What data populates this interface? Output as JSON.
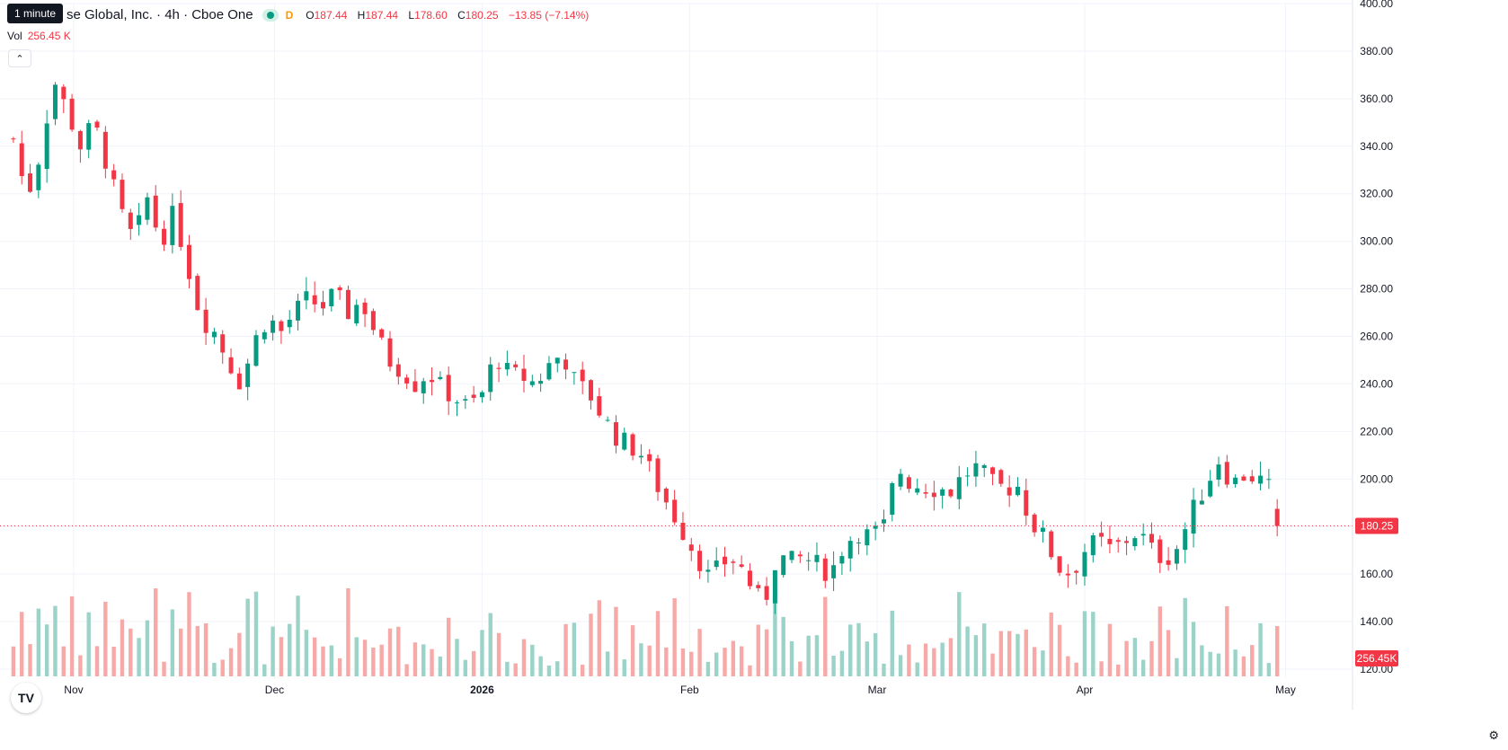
{
  "tooltip": "1 minute",
  "legend": {
    "symbol": "se Global, Inc. · 4h · Cboe One",
    "interval_badge": "D",
    "open_label": "O",
    "open": "187.44",
    "high_label": "H",
    "high": "187.44",
    "low_label": "L",
    "low": "178.60",
    "close_label": "C",
    "close": "180.25",
    "change": "−13.85 (−7.14%)"
  },
  "volume": {
    "label": "Vol",
    "value": "256.45 K"
  },
  "collapse_icon": "chevron-up-icon",
  "logo_text": "TV",
  "colors": {
    "up": "#089981",
    "down": "#f23645",
    "up_vol": "#9bd3c9",
    "down_vol": "#f7a9a7",
    "grid": "#f0f3fa",
    "axis_text": "#131722"
  },
  "chart_data": {
    "type": "candlestick",
    "y_ticks": [
      "400.00",
      "380.00",
      "360.00",
      "340.00",
      "320.00",
      "300.00",
      "280.00",
      "260.00",
      "240.00",
      "220.00",
      "200.00",
      "180.00",
      "160.00",
      "140.00",
      "120.00"
    ],
    "ylim": [
      120,
      400
    ],
    "x_ticks": [
      {
        "label": "Nov",
        "date": "2025-11-01"
      },
      {
        "label": "Dec",
        "date": "2025-12-01"
      },
      {
        "label": "2026",
        "date": "2026-01-01",
        "bold": true
      },
      {
        "label": "Feb",
        "date": "2026-02-01"
      },
      {
        "label": "Mar",
        "date": "2026-03-01"
      },
      {
        "label": "Apr",
        "date": "2026-04-01"
      },
      {
        "label": "May",
        "date": "2026-05-01"
      }
    ],
    "last_price": "180.25",
    "last_volume": "256.45K",
    "price_path": [
      [
        "2025-10-23",
        343
      ],
      [
        "2025-10-25",
        318
      ],
      [
        "2025-10-27",
        337
      ],
      [
        "2025-10-29",
        368
      ],
      [
        "2025-10-31",
        355
      ],
      [
        "2025-11-02",
        340
      ],
      [
        "2025-11-04",
        350
      ],
      [
        "2025-11-06",
        332
      ],
      [
        "2025-11-08",
        312
      ],
      [
        "2025-11-10",
        300
      ],
      [
        "2025-11-12",
        318
      ],
      [
        "2025-11-14",
        300
      ],
      [
        "2025-11-16",
        312
      ],
      [
        "2025-11-18",
        290
      ],
      [
        "2025-11-20",
        268
      ],
      [
        "2025-11-22",
        262
      ],
      [
        "2025-11-24",
        250
      ],
      [
        "2025-11-26",
        240
      ],
      [
        "2025-11-28",
        258
      ],
      [
        "2025-11-30",
        268
      ],
      [
        "2025-12-02",
        262
      ],
      [
        "2025-12-04",
        270
      ],
      [
        "2025-12-06",
        276
      ],
      [
        "2025-12-08",
        272
      ],
      [
        "2025-12-10",
        278
      ],
      [
        "2025-12-12",
        270
      ],
      [
        "2025-12-14",
        275
      ],
      [
        "2025-12-16",
        262
      ],
      [
        "2025-12-18",
        250
      ],
      [
        "2025-12-20",
        246
      ],
      [
        "2025-12-22",
        240
      ],
      [
        "2025-12-24",
        245
      ],
      [
        "2025-12-26",
        238
      ],
      [
        "2025-12-28",
        234
      ],
      [
        "2025-12-30",
        230
      ],
      [
        "2026-01-01",
        236
      ],
      [
        "2026-01-03",
        252
      ],
      [
        "2026-01-05",
        244
      ],
      [
        "2026-01-07",
        243
      ],
      [
        "2026-01-09",
        240
      ],
      [
        "2026-01-11",
        248
      ],
      [
        "2026-01-13",
        253
      ],
      [
        "2026-01-15",
        240
      ],
      [
        "2026-01-17",
        236
      ],
      [
        "2026-01-19",
        226
      ],
      [
        "2026-01-21",
        218
      ],
      [
        "2026-01-23",
        214
      ],
      [
        "2026-01-25",
        210
      ],
      [
        "2026-01-27",
        198
      ],
      [
        "2026-01-29",
        188
      ],
      [
        "2026-01-31",
        178
      ],
      [
        "2026-02-02",
        168
      ],
      [
        "2026-02-04",
        158
      ],
      [
        "2026-02-06",
        165
      ],
      [
        "2026-02-08",
        166
      ],
      [
        "2026-02-10",
        156
      ],
      [
        "2026-02-12",
        146
      ],
      [
        "2026-02-14",
        168
      ],
      [
        "2026-02-16",
        165
      ],
      [
        "2026-02-18",
        167
      ],
      [
        "2026-02-20",
        164
      ],
      [
        "2026-02-22",
        160
      ],
      [
        "2026-02-24",
        172
      ],
      [
        "2026-02-26",
        178
      ],
      [
        "2026-02-28",
        176
      ],
      [
        "2026-03-02",
        180
      ],
      [
        "2026-03-04",
        205
      ],
      [
        "2026-03-06",
        198
      ],
      [
        "2026-03-08",
        197
      ],
      [
        "2026-03-10",
        196
      ],
      [
        "2026-03-12",
        195
      ],
      [
        "2026-03-14",
        202
      ],
      [
        "2026-03-16",
        205
      ],
      [
        "2026-03-18",
        198
      ],
      [
        "2026-03-20",
        196
      ],
      [
        "2026-03-22",
        197
      ],
      [
        "2026-03-24",
        182
      ],
      [
        "2026-03-26",
        175
      ],
      [
        "2026-03-28",
        163
      ],
      [
        "2026-03-30",
        160
      ],
      [
        "2026-04-01",
        170
      ],
      [
        "2026-04-03",
        174
      ],
      [
        "2026-04-05",
        170
      ],
      [
        "2026-04-07",
        174
      ],
      [
        "2026-04-09",
        178
      ],
      [
        "2026-04-11",
        170
      ],
      [
        "2026-04-13",
        166
      ],
      [
        "2026-04-15",
        172
      ],
      [
        "2026-04-17",
        186
      ],
      [
        "2026-04-19",
        197
      ],
      [
        "2026-04-21",
        208
      ],
      [
        "2026-04-23",
        198
      ],
      [
        "2026-04-25",
        202
      ],
      [
        "2026-04-27",
        200
      ],
      [
        "2026-04-29",
        195
      ],
      [
        "2026-04-30",
        180.25
      ]
    ]
  }
}
